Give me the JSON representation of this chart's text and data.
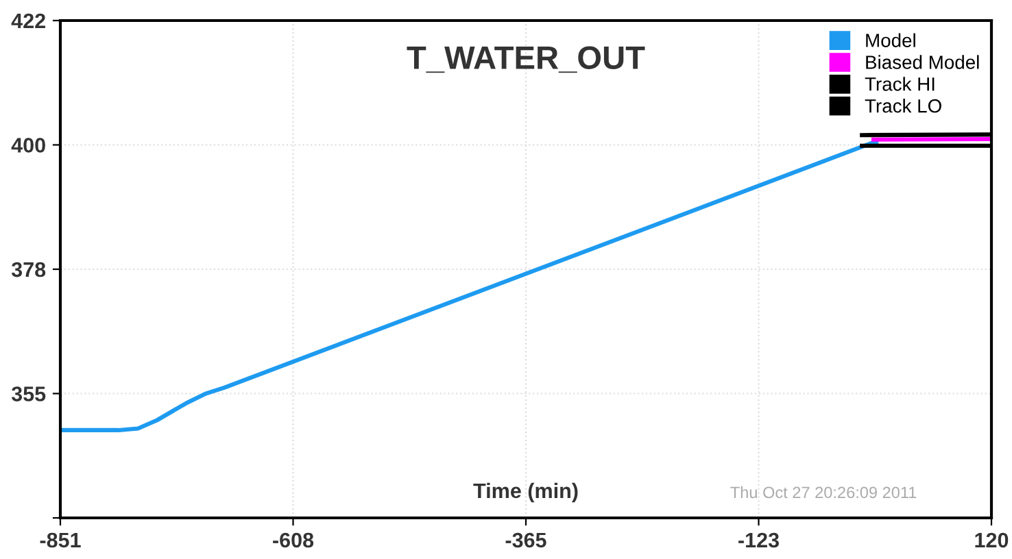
{
  "chart_data": {
    "type": "line",
    "title": "T_WATER_OUT",
    "xlabel": "Time (min)",
    "annotations": [
      "Thu Oct 27 20:26:09 2011"
    ],
    "xlim": [
      -851,
      120
    ],
    "ylim": [
      333,
      422
    ],
    "xticks": [
      -851,
      {
        "value": -608.25,
        "label": "-608"
      },
      {
        "value": -365.5,
        "label": "-365"
      },
      {
        "value": -122.75,
        "label": "-123"
      },
      120
    ],
    "yticks": [
      {
        "value": 333,
        "label": null
      },
      {
        "value": 355.25,
        "label": "355"
      },
      {
        "value": 377.5,
        "label": "378"
      },
      {
        "value": 399.75,
        "label": "400"
      },
      422
    ],
    "grid": true,
    "legend": "top right",
    "marker": "none",
    "line_style": "solid",
    "series": [
      {
        "name": "Model",
        "color": "#1e9bf0",
        "x": [
          -851,
          -790,
          -770,
          -750,
          -720,
          -700,
          -680,
          -3,
          0
        ],
        "values": [
          348.7,
          348.7,
          349,
          350.5,
          353.5,
          355.2,
          356.3,
          400.2,
          400.2
        ]
      },
      {
        "name": "Biased Model",
        "color": "#ff00ff",
        "x": [
          -3,
          120
        ],
        "values": [
          400.7,
          400.8
        ]
      },
      {
        "name": "Track HI",
        "color": "#000000",
        "x": [
          -15,
          120
        ],
        "values": [
          401.5,
          401.6
        ]
      },
      {
        "name": "Track LO",
        "color": "#000000",
        "x": [
          -15,
          120
        ],
        "values": [
          399.6,
          399.6
        ]
      }
    ]
  }
}
